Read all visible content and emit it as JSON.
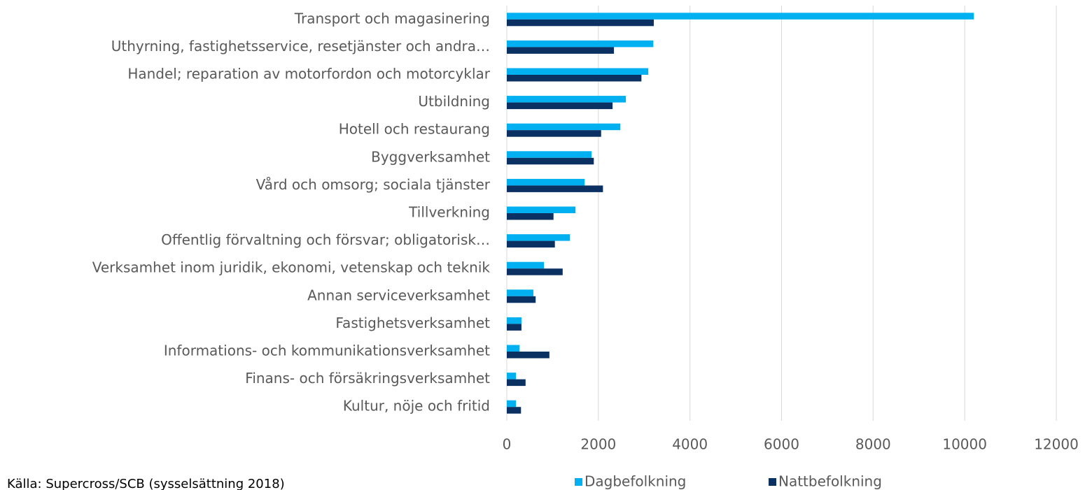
{
  "chart_data": {
    "type": "bar",
    "orientation": "horizontal",
    "categories": [
      "Transport och magasinering",
      "Uthyrning, fastighetsservice, resetjänster och andra…",
      "Handel; reparation av motorfordon och motorcyklar",
      "Utbildning",
      "Hotell och restaurang",
      "Byggverksamhet",
      "Vård och omsorg; sociala tjänster",
      "Tillverkning",
      "Offentlig förvaltning och försvar; obligatorisk…",
      "Verksamhet inom juridik, ekonomi, vetenskap och teknik",
      "Annan serviceverksamhet",
      "Fastighetsverksamhet",
      "Informations- och kommunikationsverksamhet",
      "Finans- och försäkringsverksamhet",
      "Kultur, nöje och fritid"
    ],
    "series": [
      {
        "name": "Dagbefolkning",
        "color": "#00b0f0",
        "values": [
          10200,
          3200,
          3090,
          2600,
          2480,
          1850,
          1700,
          1500,
          1380,
          810,
          580,
          320,
          280,
          200,
          200
        ]
      },
      {
        "name": "Nattbefolkning",
        "color": "#0b3163",
        "values": [
          3210,
          2340,
          2940,
          2310,
          2060,
          1900,
          2100,
          1020,
          1050,
          1220,
          630,
          320,
          930,
          410,
          310
        ]
      }
    ],
    "xlim": [
      0,
      12000
    ],
    "xticks": [
      0,
      2000,
      4000,
      6000,
      8000,
      10000,
      12000
    ],
    "grid": true,
    "legend": "bottom",
    "source": "Källa: Supercross/SCB (sysselsättning 2018)"
  }
}
